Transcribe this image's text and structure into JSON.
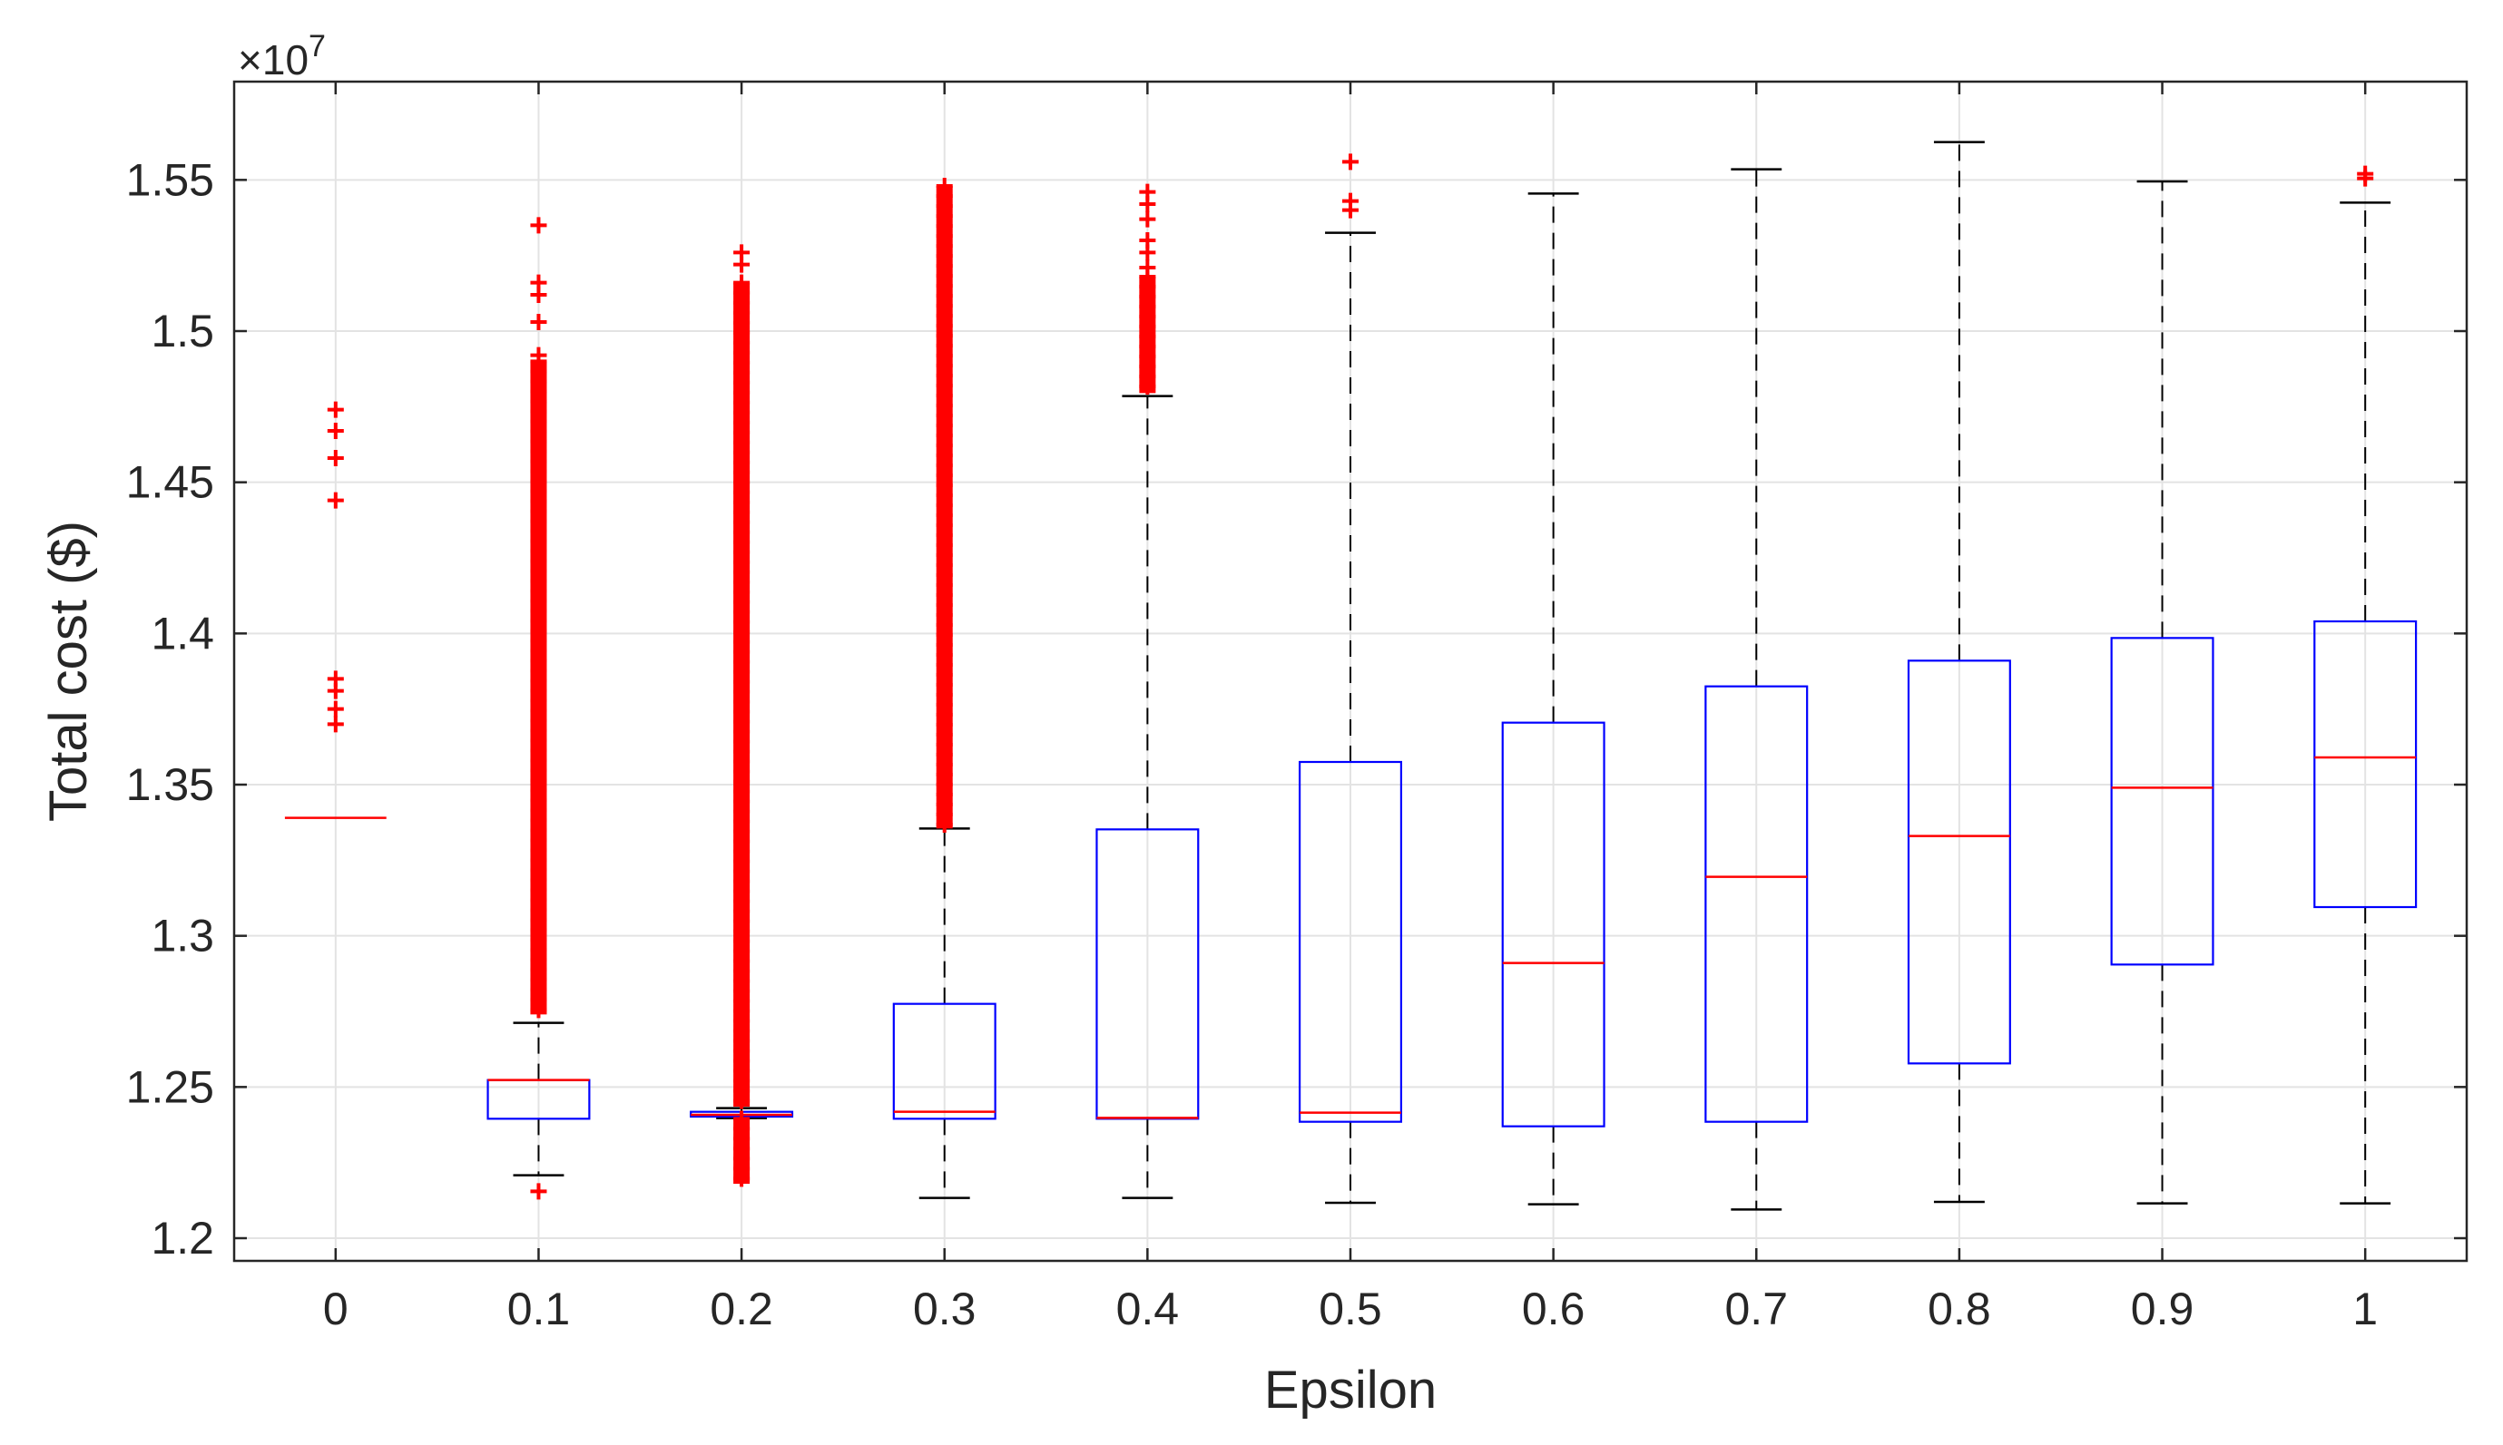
{
  "chart_data": {
    "type": "box",
    "xlabel": "Epsilon",
    "ylabel": "Total cost ($)",
    "y_exponent": {
      "base": "×10",
      "power": "7"
    },
    "ylim": [
      1.1925,
      1.5825
    ],
    "yticks": [
      1.2,
      1.25,
      1.3,
      1.35,
      1.4,
      1.45,
      1.5,
      1.55
    ],
    "ytick_labels": [
      "1.2",
      "1.25",
      "1.3",
      "1.35",
      "1.4",
      "1.45",
      "1.5",
      "1.55"
    ],
    "grid": true,
    "colors": {
      "box": "#0000ff",
      "median": "#ff0000",
      "whisker": "#000000",
      "outlier": "#ff0000",
      "axis": "#262626",
      "grid": "#e3e3e3"
    },
    "categories": [
      "0",
      "0.1",
      "0.2",
      "0.3",
      "0.4",
      "0.5",
      "0.6",
      "0.7",
      "0.8",
      "0.9",
      "1"
    ],
    "boxes": [
      {
        "label": "0",
        "q1": 1.339,
        "median": 1.339,
        "q3": 1.339,
        "whisker_low": 1.339,
        "whisker_high": 1.339,
        "outliers": [
          1.474,
          1.467,
          1.458,
          1.444,
          1.385,
          1.381,
          1.375,
          1.37
        ]
      },
      {
        "label": "0.1",
        "q1": 1.2395,
        "median": 1.2523,
        "q3": 1.2523,
        "whisker_low": 1.2208,
        "whisker_high": 1.2712,
        "outliers": [
          1.2155,
          1.535,
          1.516,
          1.512,
          1.503,
          1.492
        ],
        "outlier_bands": [
          [
            1.274,
            1.49
          ]
        ]
      },
      {
        "label": "0.2",
        "q1": 1.2402,
        "median": 1.2408,
        "q3": 1.2418,
        "whisker_low": 1.2397,
        "whisker_high": 1.243,
        "outliers": [
          1.526,
          1.522
        ],
        "outlier_bands": [
          [
            1.218,
            1.2395
          ],
          [
            1.2435,
            1.516
          ]
        ]
      },
      {
        "label": "0.3",
        "q1": 1.2395,
        "median": 1.2418,
        "q3": 1.2775,
        "whisker_low": 1.2133,
        "whisker_high": 1.3355,
        "outliers": [],
        "outlier_bands": [
          [
            1.3355,
            1.548
          ]
        ]
      },
      {
        "label": "0.4",
        "q1": 1.2395,
        "median": 1.2398,
        "q3": 1.3352,
        "whisker_low": 1.2133,
        "whisker_high": 1.4785,
        "outliers": [
          1.546,
          1.542,
          1.537,
          1.53,
          1.526,
          1.521
        ],
        "outlier_bands": [
          [
            1.4795,
            1.518
          ]
        ]
      },
      {
        "label": "0.5",
        "q1": 1.2385,
        "median": 1.2415,
        "q3": 1.3575,
        "whisker_low": 1.2117,
        "whisker_high": 1.5325,
        "outliers": [
          1.556,
          1.543,
          1.54
        ]
      },
      {
        "label": "0.6",
        "q1": 1.237,
        "median": 1.291,
        "q3": 1.3705,
        "whisker_low": 1.2112,
        "whisker_high": 1.5455,
        "outliers": []
      },
      {
        "label": "0.7",
        "q1": 1.2385,
        "median": 1.3195,
        "q3": 1.3825,
        "whisker_low": 1.2095,
        "whisker_high": 1.5535,
        "outliers": []
      },
      {
        "label": "0.8",
        "q1": 1.2578,
        "median": 1.333,
        "q3": 1.391,
        "whisker_low": 1.212,
        "whisker_high": 1.5625,
        "outliers": []
      },
      {
        "label": "0.9",
        "q1": 1.2905,
        "median": 1.349,
        "q3": 1.3985,
        "whisker_low": 1.2115,
        "whisker_high": 1.5495,
        "outliers": []
      },
      {
        "label": "1",
        "q1": 1.3095,
        "median": 1.359,
        "q3": 1.404,
        "whisker_low": 1.2115,
        "whisker_high": 1.5425,
        "outliers": [
          1.552,
          1.5505
        ]
      }
    ]
  }
}
